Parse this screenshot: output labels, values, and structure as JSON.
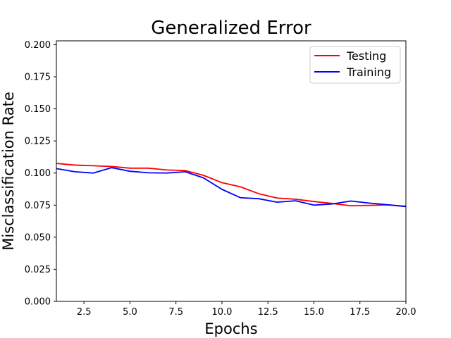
{
  "chart_data": {
    "type": "line",
    "title": "Generalized Error",
    "xlabel": "Epochs",
    "ylabel": "Misclassification Rate",
    "xlim": [
      1,
      20
    ],
    "ylim": [
      0,
      0.203
    ],
    "xticks": [
      2.5,
      5.0,
      7.5,
      10.0,
      12.5,
      15.0,
      17.5,
      20.0
    ],
    "xtick_labels": [
      "2.5",
      "5.0",
      "7.5",
      "10.0",
      "12.5",
      "15.0",
      "17.5",
      "20.0"
    ],
    "yticks": [
      0.0,
      0.025,
      0.05,
      0.075,
      0.1,
      0.125,
      0.15,
      0.175,
      0.2
    ],
    "ytick_labels": [
      "0.000",
      "0.025",
      "0.050",
      "0.075",
      "0.100",
      "0.125",
      "0.150",
      "0.175",
      "0.200"
    ],
    "grid": false,
    "legend_position": "top-right",
    "x": [
      1,
      2,
      3,
      4,
      5,
      6,
      7,
      8,
      9,
      10,
      11,
      12,
      13,
      14,
      15,
      16,
      17,
      18,
      19,
      20
    ],
    "series": [
      {
        "name": "Testing",
        "color": "#ff0000",
        "values": [
          0.1075,
          0.1062,
          0.1057,
          0.1051,
          0.1038,
          0.1038,
          0.1024,
          0.1019,
          0.0982,
          0.0925,
          0.0893,
          0.0839,
          0.0805,
          0.0796,
          0.0778,
          0.0763,
          0.0745,
          0.0748,
          0.0752,
          0.0741
        ]
      },
      {
        "name": "Training",
        "color": "#0000ff",
        "values": [
          0.1035,
          0.101,
          0.1,
          0.1042,
          0.1014,
          0.1002,
          0.1,
          0.101,
          0.0962,
          0.0873,
          0.0808,
          0.08,
          0.0773,
          0.0784,
          0.075,
          0.0759,
          0.0782,
          0.0766,
          0.0753,
          0.0739
        ]
      }
    ]
  }
}
